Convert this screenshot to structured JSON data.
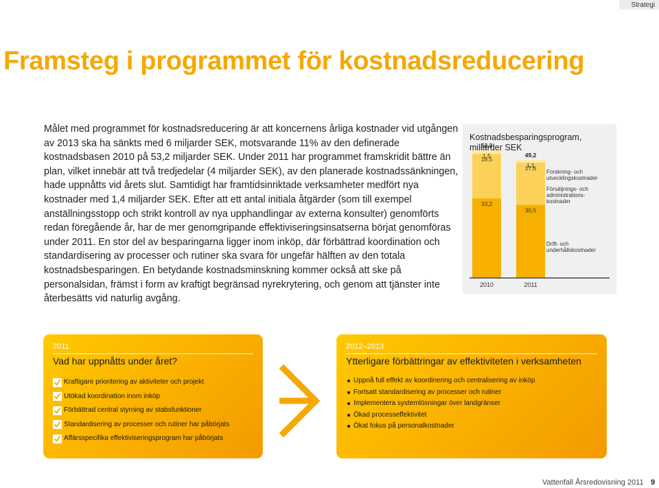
{
  "header": {
    "section_tab": "Strategi"
  },
  "title": "Framsteg i programmet för kostnadsreducering",
  "body_paragraphs": [
    "Målet med programmet för kostnadsreducering är att koncernens årliga kostnader vid utgången av 2013 ska ha sänkts med 6 miljarder SEK, motsvarande 11% av den definerade kostnadsbasen 2010 på 53,2 miljarder SEK. Under 2011 har programmet framskridit bättre än plan, vilket innebär att två tredjedelar (4 miljarder SEK), av den planerade kostnadssänkningen, hade uppnåtts vid årets slut. Samtidigt har framtidsinriktade verksamheter medfört nya kostnader med 1,4 miljarder SEK. Efter att ett antal initiala åtgärder (som till exempel anställnings­stopp och strikt kontroll av nya upphandlingar av externa konsulter) genomförts redan föregående år, har de mer genomgripande effektiviseringsinsatserna börjat genomföras under 2011. En stor del av besparingarna ligger inom inköp, där förbättrad koordination och standardisering av processer och rutiner ska svara för ungefär hälften av den totala kostnadsbesparingen. En betydande kostnadsminskning kommer också att ske på personalsidan, främst i form av kraftigt begränsad nyrekrytering, och genom att tjänster inte återbesätts vid naturlig avgång."
  ],
  "chart_data": {
    "type": "bar",
    "stacked": true,
    "title": "Kostnadsbesparingsprogram, miljarder SEK",
    "categories": [
      "2010",
      "2011"
    ],
    "totals": [
      "53,2",
      "49,2"
    ],
    "series": [
      {
        "name": "Drift- och underhållskostnader",
        "values": [
          33.2,
          30.5
        ],
        "labels": [
          "33,2",
          "30,5"
        ],
        "color": "#f7b000"
      },
      {
        "name": "Försäljnings- och administrations­kostnader",
        "values": [
          18.5,
          17.6
        ],
        "labels": [
          "18,5",
          "17,6"
        ],
        "color": "#fcd15a"
      },
      {
        "name": "Forskning- och utvecklingskostnader",
        "values": [
          1.5,
          1.1
        ],
        "labels": [
          "1,5",
          "1,1"
        ],
        "color": "#ffe9a6"
      }
    ],
    "legend_lines": [
      [
        "Forskning- och",
        "utvecklingskostnader"
      ],
      [
        "Försäljnings- och",
        "administrations-",
        "kostnader"
      ],
      [
        "Drift- och",
        "underhållskostnader"
      ]
    ],
    "legend": "right"
  },
  "box_2011": {
    "year": "2011",
    "heading": "Vad har uppnåtts under året?",
    "items": [
      "Kraftigare prioritering av aktiviteter och projekt",
      "Utökad koordination inom inköp",
      "Förbättrad central styrning av stabsfunktioner",
      "Standardisering av processer och rutiner har påbörjats",
      "Affärsspecifika effektiviseringsprogram har påbörjats"
    ]
  },
  "box_2012": {
    "year": "2012–2013",
    "heading": "Ytterligare förbättringar av effektiviteten i verksamheten",
    "items": [
      "Uppnå full effekt av koordinering och centralisering av inköp",
      "Fortsatt standardisering av processer och rutiner",
      "Implementera systemlösningar över landgränser",
      "Ökad processeffektivitet",
      "Ökat fokus på personalkostnader"
    ]
  },
  "colors": {
    "accent": "#f5a800",
    "box_gradient_start": "#ffc900",
    "box_gradient_end": "#f39a00"
  },
  "footer": {
    "publication": "Vattenfall Årsredovisning 2011",
    "page_number": "9"
  }
}
